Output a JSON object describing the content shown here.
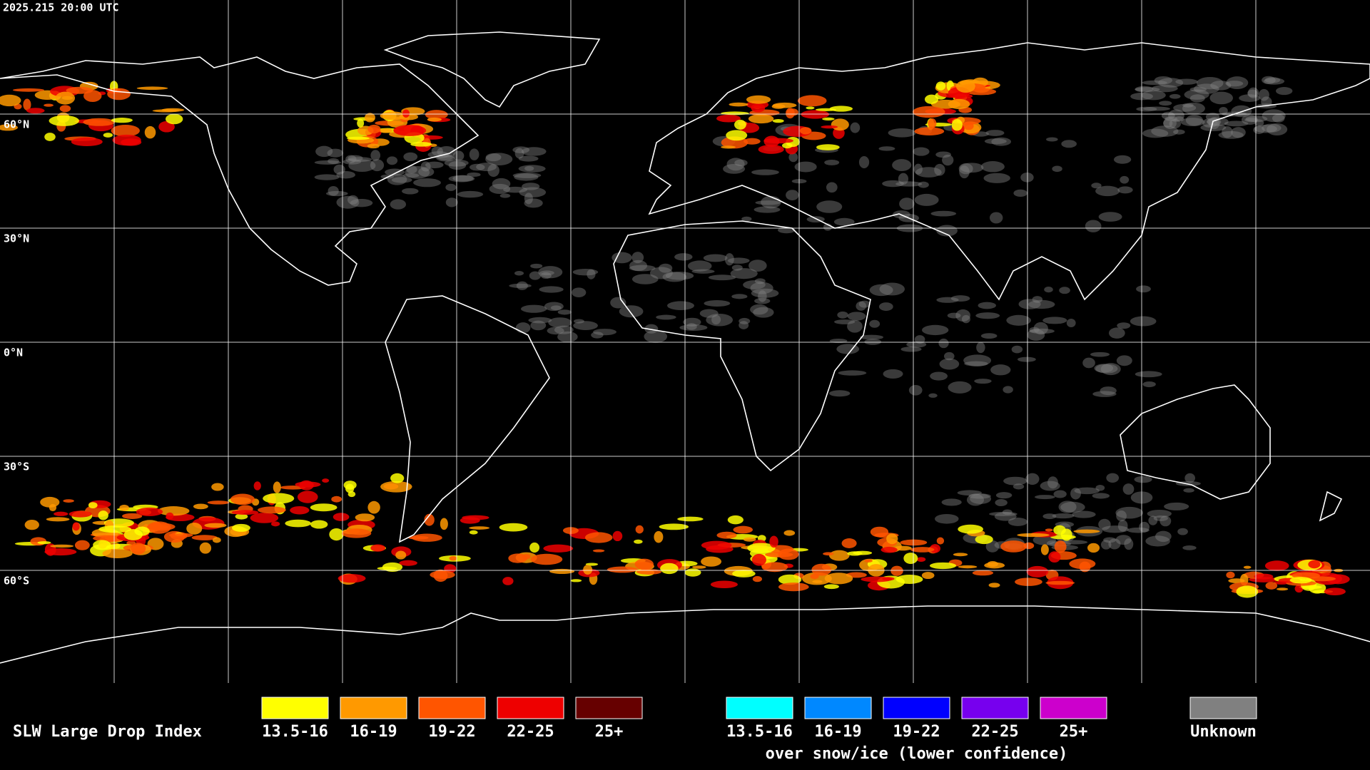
{
  "header": {
    "timestamp": "2025.215 20:00 UTC"
  },
  "map": {
    "lat_labels": [
      "60°N",
      "30°N",
      "0°N",
      "30°S",
      "60°S"
    ]
  },
  "legend": {
    "title": "SLW Large Drop Index",
    "groups": [
      {
        "items": [
          {
            "label": "13.5-16",
            "color": "#ffff00"
          },
          {
            "label": "16-19",
            "color": "#ff9900"
          },
          {
            "label": "19-22",
            "color": "#ff5500"
          },
          {
            "label": "22-25",
            "color": "#ee0000"
          },
          {
            "label": "25+",
            "color": "#660000"
          }
        ]
      },
      {
        "items": [
          {
            "label": "13.5-16",
            "color": "#00ffff"
          },
          {
            "label": "16-19",
            "color": "#0088ff"
          },
          {
            "label": "19-22",
            "color": "#0000ff"
          },
          {
            "label": "22-25",
            "color": "#7700ee"
          },
          {
            "label": "25+",
            "color": "#cc00cc"
          }
        ],
        "caption": "over snow/ice (lower confidence)"
      },
      {
        "items": [
          {
            "label": "Unknown",
            "color": "#808080"
          }
        ]
      }
    ]
  }
}
